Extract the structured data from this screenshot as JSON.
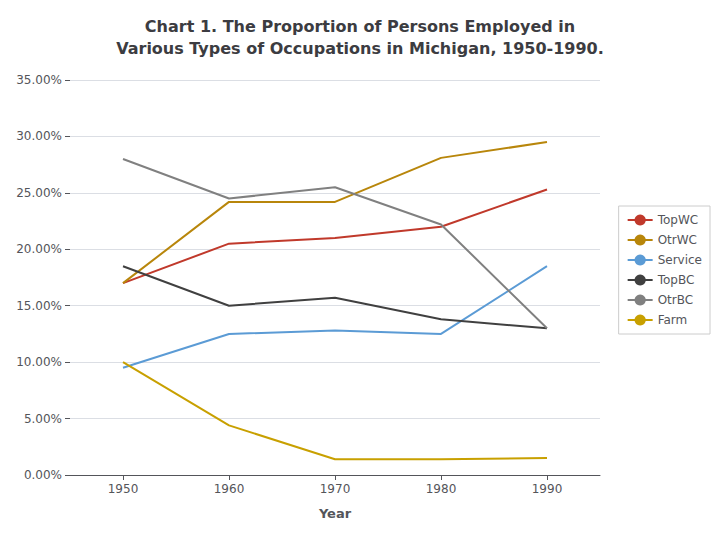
{
  "chart_data": {
    "type": "line",
    "title": "Chart 1. The Proportion of Persons Employed in\nVarious Types of Occupations in Michigan, 1950-1990.",
    "xlabel": "Year",
    "x": [
      1950,
      1960,
      1970,
      1980,
      1990
    ],
    "series": [
      {
        "name": "TopWC",
        "color": "#c0392b",
        "values": [
          0.17,
          0.205,
          0.21,
          0.22,
          0.253
        ]
      },
      {
        "name": "OtrWC",
        "color": "#b8860b",
        "values": [
          0.17,
          0.242,
          0.242,
          0.281,
          0.295
        ]
      },
      {
        "name": "Service",
        "color": "#5b9bd5",
        "values": [
          0.095,
          0.125,
          0.128,
          0.125,
          0.185
        ]
      },
      {
        "name": "TopBC",
        "color": "#404040",
        "values": [
          0.185,
          0.15,
          0.157,
          0.138,
          0.13
        ]
      },
      {
        "name": "OtrBC",
        "color": "#808080",
        "values": [
          0.28,
          0.245,
          0.255,
          0.222,
          0.13
        ]
      },
      {
        "name": "Farm",
        "color": "#c8a000",
        "values": [
          0.1,
          0.044,
          0.014,
          0.014,
          0.015
        ]
      }
    ],
    "xlim": [
      1945,
      1995
    ],
    "xticks": [
      1950,
      1960,
      1970,
      1980,
      1990
    ],
    "ylim": [
      0.0,
      0.35
    ],
    "yticks": [
      {
        "value": 0.0,
        "label": "0.00%"
      },
      {
        "value": 0.05,
        "label": "5.00%"
      },
      {
        "value": 0.1,
        "label": "10.00%"
      },
      {
        "value": 0.15,
        "label": "15.00%"
      },
      {
        "value": 0.2,
        "label": "20.00%"
      },
      {
        "value": 0.25,
        "label": "25.00%"
      },
      {
        "value": 0.3,
        "label": "30.00%"
      },
      {
        "value": 0.35,
        "label": "35.00%"
      }
    ],
    "grid": "y",
    "legend": "right",
    "marker": "none"
  }
}
